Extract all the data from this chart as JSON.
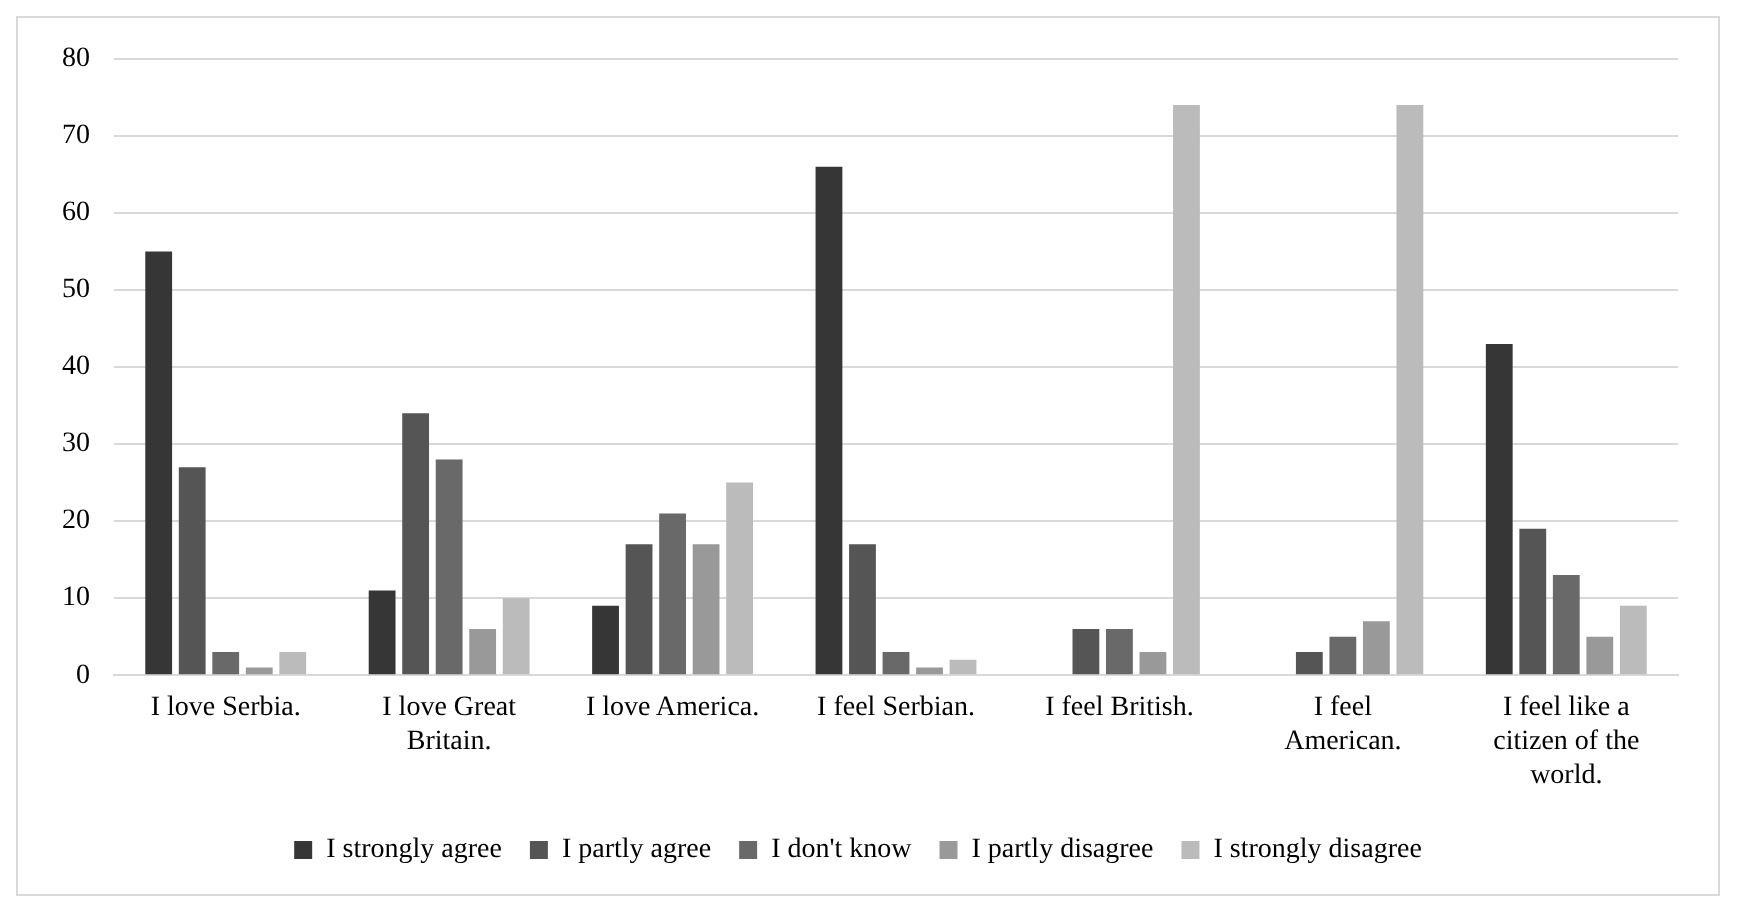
{
  "chart_data": {
    "type": "bar",
    "categories": [
      "I love Serbia.",
      "I love Great Britain.",
      "I love America.",
      "I feel Serbian.",
      "I feel British.",
      "I feel American.",
      "I feel like a citizen of the world."
    ],
    "series": [
      {
        "name": "I strongly agree",
        "color": "#363636",
        "values": [
          55,
          11,
          9,
          66,
          0,
          0,
          43
        ]
      },
      {
        "name": "I partly agree",
        "color": "#555555",
        "values": [
          27,
          34,
          17,
          17,
          6,
          3,
          19
        ]
      },
      {
        "name": "I don't know",
        "color": "#696969",
        "values": [
          3,
          28,
          21,
          3,
          6,
          5,
          13
        ]
      },
      {
        "name": "I partly disagree",
        "color": "#999999",
        "values": [
          1,
          6,
          17,
          1,
          3,
          7,
          5
        ]
      },
      {
        "name": "I strongly disagree",
        "color": "#bbbbbb",
        "values": [
          3,
          10,
          25,
          2,
          74,
          74,
          9
        ]
      }
    ],
    "ylim": [
      0,
      80
    ],
    "yticks": [
      0,
      10,
      20,
      30,
      40,
      50,
      60,
      70,
      80
    ],
    "grid": "y",
    "legend": "bottom"
  }
}
